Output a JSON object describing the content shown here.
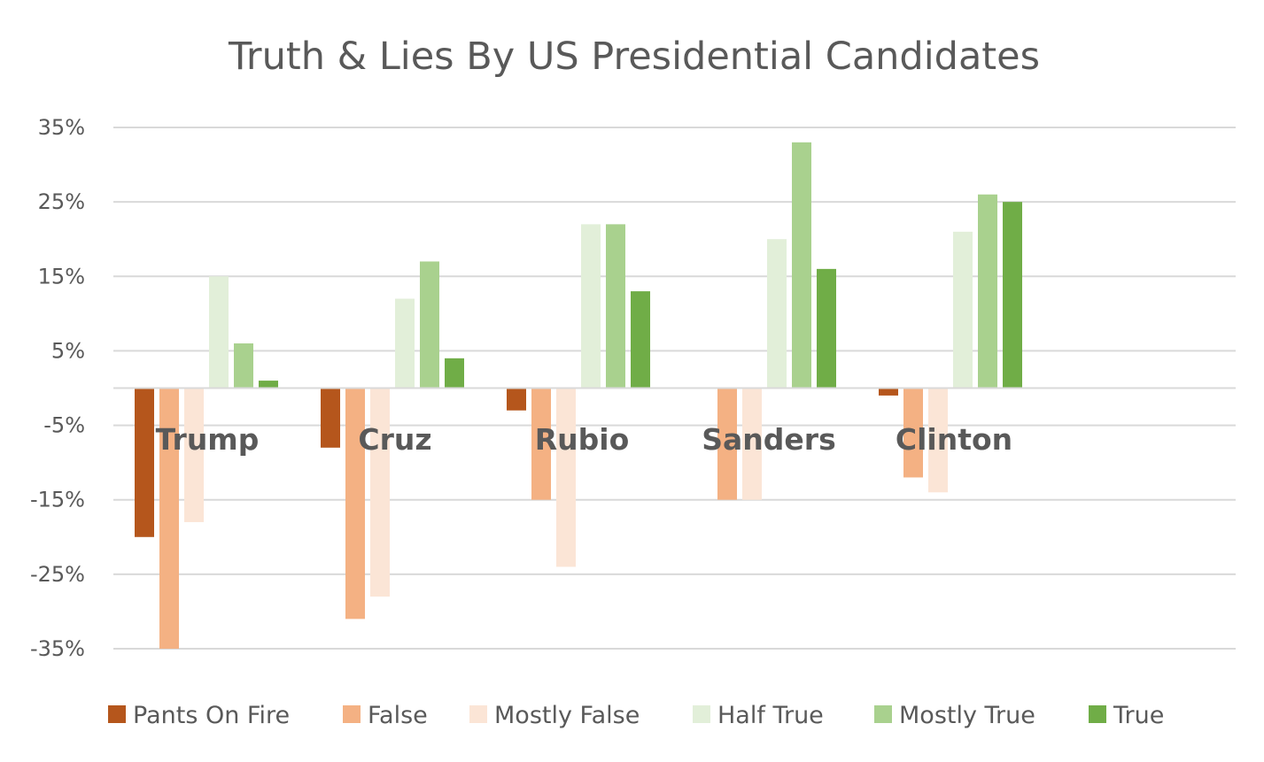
{
  "chart_data": {
    "type": "bar",
    "title": "Truth & Lies By US Presidential Candidates",
    "xlabel": "",
    "ylabel": "",
    "categories": [
      "Trump",
      "Cruz",
      "Rubio",
      "Sanders",
      "Clinton"
    ],
    "ylim": [
      -35,
      35
    ],
    "yticks": [
      35,
      25,
      15,
      5,
      -5,
      -15,
      -25,
      -35
    ],
    "ytick_labels": [
      "35%",
      "25%",
      "15%",
      "5%",
      "-5%",
      "-15%",
      "-25%",
      "-35%"
    ],
    "grid": true,
    "legend_position": "bottom",
    "series": [
      {
        "name": "Pants On Fire",
        "color": "#b5561c",
        "values": [
          -20,
          -8,
          -3,
          0,
          -1
        ]
      },
      {
        "name": "False",
        "color": "#f4b183",
        "values": [
          -35,
          -31,
          -15,
          -15,
          -12
        ]
      },
      {
        "name": "Mostly False",
        "color": "#fbe5d6",
        "values": [
          -18,
          -28,
          -24,
          -15,
          -14
        ]
      },
      {
        "name": "Half True",
        "color": "#e2efd9",
        "values": [
          15,
          12,
          22,
          20,
          21
        ]
      },
      {
        "name": "Mostly True",
        "color": "#a9d18e",
        "values": [
          6,
          17,
          22,
          33,
          26
        ]
      },
      {
        "name": "True",
        "color": "#70ad47",
        "values": [
          1,
          4,
          13,
          16,
          25
        ]
      }
    ]
  }
}
